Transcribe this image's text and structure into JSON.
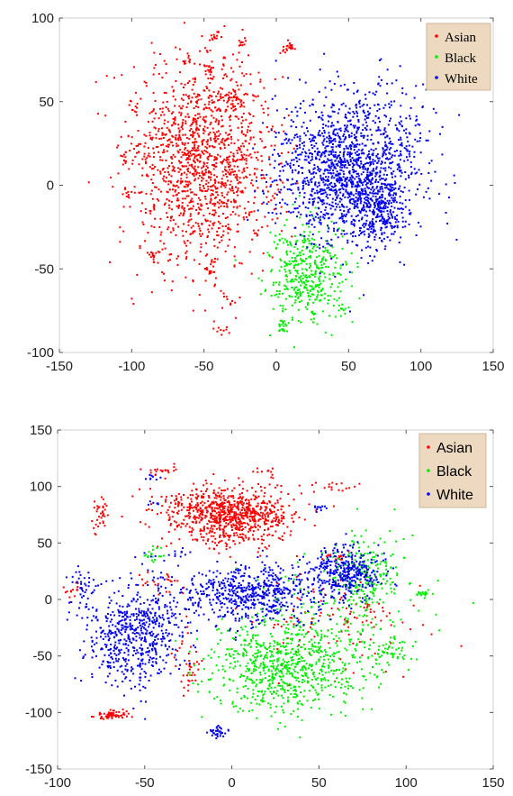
{
  "chart_data": [
    {
      "type": "scatter",
      "title": "",
      "xlabel": "",
      "ylabel": "",
      "xlim": [
        -150,
        150
      ],
      "ylim": [
        -100,
        100
      ],
      "xticks": [
        "-150",
        "-100",
        "-50",
        "0",
        "50",
        "100",
        "150"
      ],
      "yticks": [
        "-100",
        "-50",
        "0",
        "50",
        "100"
      ],
      "grid": false,
      "legend": "top-right",
      "series": [
        {
          "name": "Asian",
          "color": "#ff0000",
          "clusters": [
            {
              "cx": -50,
              "cy": 15,
              "sx": 25,
              "sy": 30,
              "n": 1400
            },
            {
              "cx": -43,
              "cy": 88,
              "sx": 2,
              "sy": 1.5,
              "n": 10
            },
            {
              "cx": -23,
              "cy": 85,
              "sx": 2,
              "sy": 1.5,
              "n": 10
            },
            {
              "cx": -63,
              "cy": 75,
              "sx": 2,
              "sy": 1.5,
              "n": 8
            },
            {
              "cx": -45,
              "cy": 70,
              "sx": 3,
              "sy": 2,
              "n": 14
            },
            {
              "cx": 9,
              "cy": 82,
              "sx": 2,
              "sy": 2.5,
              "n": 22
            },
            {
              "cx": -98,
              "cy": 47,
              "sx": 1.5,
              "sy": 2,
              "n": 8
            },
            {
              "cx": -105,
              "cy": 18,
              "sx": 1.5,
              "sy": 2,
              "n": 8
            },
            {
              "cx": -97,
              "cy": 22,
              "sx": 1.5,
              "sy": 2,
              "n": 6
            },
            {
              "cx": -103,
              "cy": -5,
              "sx": 2,
              "sy": 2,
              "n": 8
            },
            {
              "cx": -85,
              "cy": -42,
              "sx": 2.5,
              "sy": 2,
              "n": 14
            },
            {
              "cx": -45,
              "cy": -50,
              "sx": 3,
              "sy": 3,
              "n": 18
            },
            {
              "cx": -30,
              "cy": -70,
              "sx": 1.5,
              "sy": 2,
              "n": 6
            },
            {
              "cx": -37,
              "cy": -87,
              "sx": 2,
              "sy": 1.5,
              "n": 8
            },
            {
              "cx": -30,
              "cy": 50,
              "sx": 3,
              "sy": 3,
              "n": 25
            }
          ]
        },
        {
          "name": "Black",
          "color": "#00ee00",
          "clusters": [
            {
              "cx": 20,
              "cy": -52,
              "sx": 13,
              "sy": 14,
              "n": 420
            },
            {
              "cx": 5,
              "cy": -84,
              "sx": 2,
              "sy": 2.5,
              "n": 20
            },
            {
              "cx": 45,
              "cy": -73,
              "sx": 2,
              "sy": 2,
              "n": 10
            }
          ]
        },
        {
          "name": "White",
          "color": "#0000ee",
          "clusters": [
            {
              "cx": 50,
              "cy": 10,
              "sx": 25,
              "sy": 22,
              "n": 1500
            },
            {
              "cx": 72,
              "cy": -15,
              "sx": 10,
              "sy": 10,
              "n": 250
            }
          ]
        }
      ]
    },
    {
      "type": "scatter",
      "title": "",
      "xlabel": "",
      "ylabel": "",
      "xlim": [
        -100,
        150
      ],
      "ylim": [
        -150,
        150
      ],
      "xticks": [
        "-100",
        "-50",
        "0",
        "50",
        "100",
        "150"
      ],
      "yticks": [
        "-150",
        "-100",
        "-50",
        "0",
        "50",
        "100",
        "150"
      ],
      "grid": false,
      "legend": "top-right",
      "series": [
        {
          "name": "Asian",
          "color": "#ff0000",
          "clusters": [
            {
              "cx": -2,
              "cy": 75,
              "sx": 18,
              "sy": 13,
              "n": 850
            },
            {
              "cx": -69,
              "cy": -102,
              "sx": 5,
              "sy": 2,
              "n": 65
            },
            {
              "cx": -75,
              "cy": 75,
              "sx": 3,
              "sy": 8,
              "n": 35
            },
            {
              "cx": -40,
              "cy": 115,
              "sx": 6,
              "sy": 2,
              "n": 20
            },
            {
              "cx": 20,
              "cy": 113,
              "sx": 3,
              "sy": 1.5,
              "n": 8
            },
            {
              "cx": 60,
              "cy": 37,
              "sx": 4,
              "sy": 3,
              "n": 15
            },
            {
              "cx": -90,
              "cy": 7,
              "sx": 3,
              "sy": 3,
              "n": 15
            },
            {
              "cx": -40,
              "cy": 15,
              "sx": 6,
              "sy": 4,
              "n": 25
            },
            {
              "cx": -25,
              "cy": -60,
              "sx": 4,
              "sy": 15,
              "n": 40
            },
            {
              "cx": 60,
              "cy": -20,
              "sx": 25,
              "sy": 20,
              "n": 120
            },
            {
              "cx": 60,
              "cy": 100,
              "sx": 6,
              "sy": 3,
              "n": 15
            }
          ]
        },
        {
          "name": "Black",
          "color": "#00ee00",
          "clusters": [
            {
              "cx": 30,
              "cy": -60,
              "sx": 22,
              "sy": 20,
              "n": 750
            },
            {
              "cx": 75,
              "cy": 25,
              "sx": 10,
              "sy": 18,
              "n": 200
            },
            {
              "cx": -45,
              "cy": 40,
              "sx": 3,
              "sy": 3,
              "n": 18
            },
            {
              "cx": 110,
              "cy": 5,
              "sx": 3,
              "sy": 1.5,
              "n": 18
            },
            {
              "cx": 90,
              "cy": -45,
              "sx": 6,
              "sy": 8,
              "n": 50
            },
            {
              "cx": 60,
              "cy": -10,
              "sx": 25,
              "sy": 25,
              "n": 150
            }
          ]
        },
        {
          "name": "White",
          "color": "#0000ee",
          "clusters": [
            {
              "cx": -55,
              "cy": -30,
              "sx": 14,
              "sy": 22,
              "n": 600
            },
            {
              "cx": 10,
              "cy": 5,
              "sx": 22,
              "sy": 13,
              "n": 600
            },
            {
              "cx": 65,
              "cy": 25,
              "sx": 10,
              "sy": 12,
              "n": 350
            },
            {
              "cx": -8,
              "cy": -118,
              "sx": 3,
              "sy": 3,
              "n": 35
            },
            {
              "cx": 50,
              "cy": 82,
              "sx": 3,
              "sy": 1.5,
              "n": 12
            },
            {
              "cx": -45,
              "cy": 108,
              "sx": 3,
              "sy": 1.5,
              "n": 8
            },
            {
              "cx": -45,
              "cy": 85,
              "sx": 2,
              "sy": 2,
              "n": 6
            },
            {
              "cx": -30,
              "cy": 40,
              "sx": 4,
              "sy": 3,
              "n": 10
            },
            {
              "cx": -85,
              "cy": 12,
              "sx": 4,
              "sy": 6,
              "n": 30
            }
          ]
        }
      ]
    }
  ]
}
